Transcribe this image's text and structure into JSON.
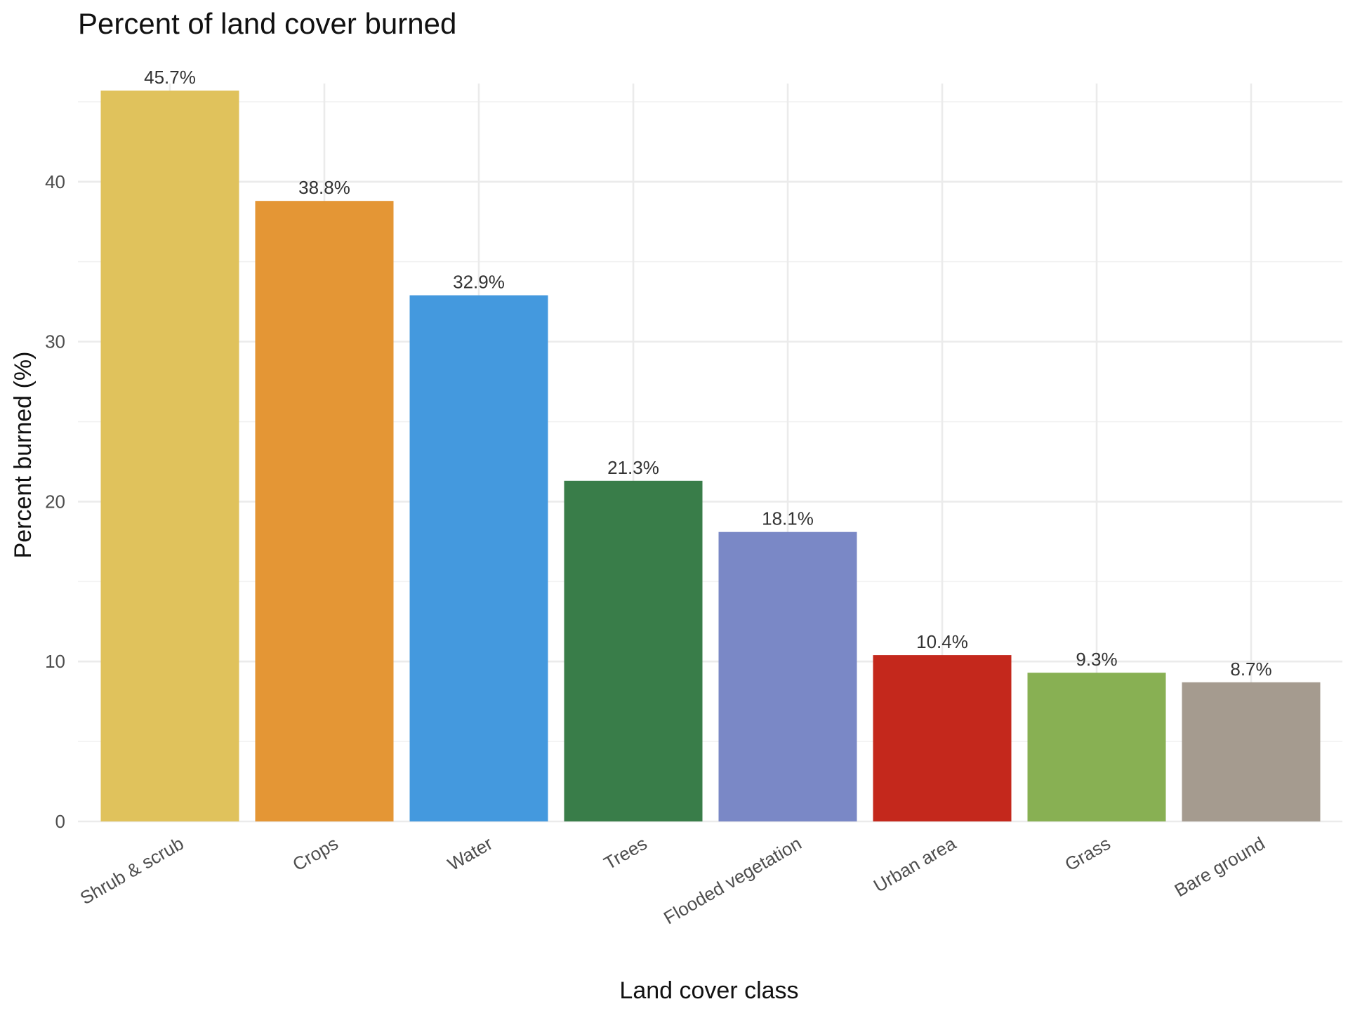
{
  "chart_data": {
    "type": "bar",
    "title": "Percent of land cover burned",
    "xlabel": "Land cover class",
    "ylabel": "Percent burned (%)",
    "categories": [
      "Shrub & scrub",
      "Crops",
      "Water",
      "Trees",
      "Flooded vegetation",
      "Urban area",
      "Grass",
      "Bare ground"
    ],
    "values": [
      45.7,
      38.8,
      32.9,
      21.3,
      18.1,
      10.4,
      9.3,
      8.7
    ],
    "data_labels": [
      "45.7%",
      "38.8%",
      "32.9%",
      "21.3%",
      "18.1%",
      "10.4%",
      "9.3%",
      "8.7%"
    ],
    "colors": [
      "#E0C25C",
      "#E49635",
      "#4499DE",
      "#397D49",
      "#7A88C6",
      "#C4281C",
      "#88B053",
      "#A59B8F"
    ],
    "ylim": [
      0,
      45.7
    ],
    "yticks": [
      0,
      10,
      20,
      30,
      40
    ],
    "grid": true,
    "legend": "none"
  }
}
